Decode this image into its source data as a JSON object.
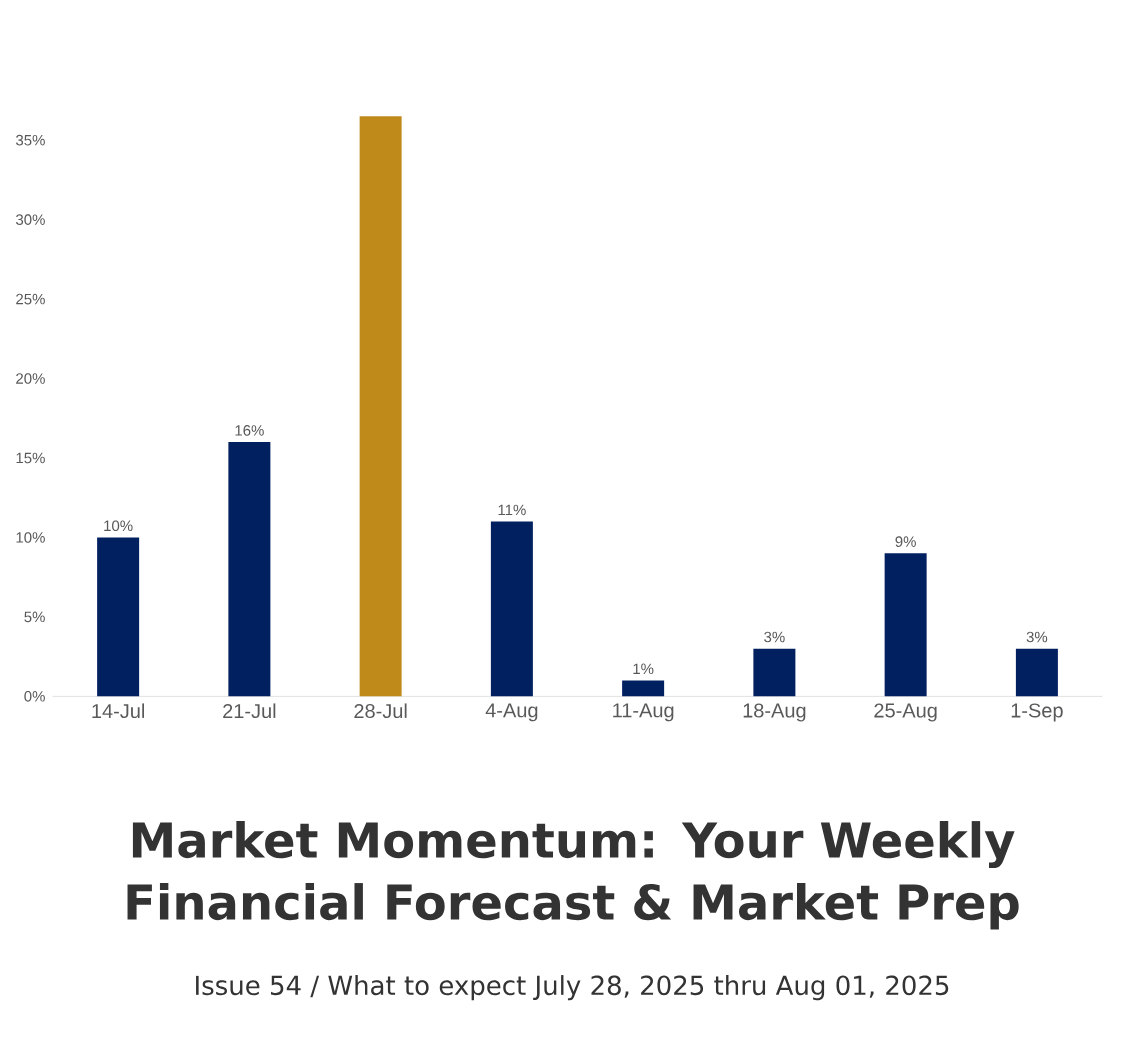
{
  "chart_data": {
    "type": "bar",
    "title": "Market Momentum: Your Weekly Financial Forecast & Market Prep",
    "subtitle": "Issue 54 / What to expect July 28, 2025 thru Aug 01, 2025",
    "categories": [
      "14-Jul",
      "21-Jul",
      "28-Jul",
      "4-Aug",
      "11-Aug",
      "18-Aug",
      "25-Aug",
      "1-Sep"
    ],
    "values": [
      10,
      16,
      36.5,
      11,
      1,
      3,
      9,
      3
    ],
    "colors": [
      "#002060",
      "#002060",
      "#c08a1a",
      "#002060",
      "#002060",
      "#002060",
      "#002060",
      "#002060"
    ],
    "value_labels": [
      "10%",
      "16%",
      null,
      "11%",
      "1%",
      "3%",
      "9%",
      "3%"
    ],
    "ylim": [
      0,
      36.5
    ],
    "yticks": [
      {
        "value": 0,
        "label": "0%"
      },
      {
        "value": 5,
        "label": "5%"
      },
      {
        "value": 10,
        "label": "10%"
      },
      {
        "value": 15,
        "label": "15%"
      },
      {
        "value": 20,
        "label": "20%"
      },
      {
        "value": 25,
        "label": "25%"
      },
      {
        "value": 30,
        "label": "30%"
      },
      {
        "value": 35,
        "label": "35%"
      }
    ]
  }
}
